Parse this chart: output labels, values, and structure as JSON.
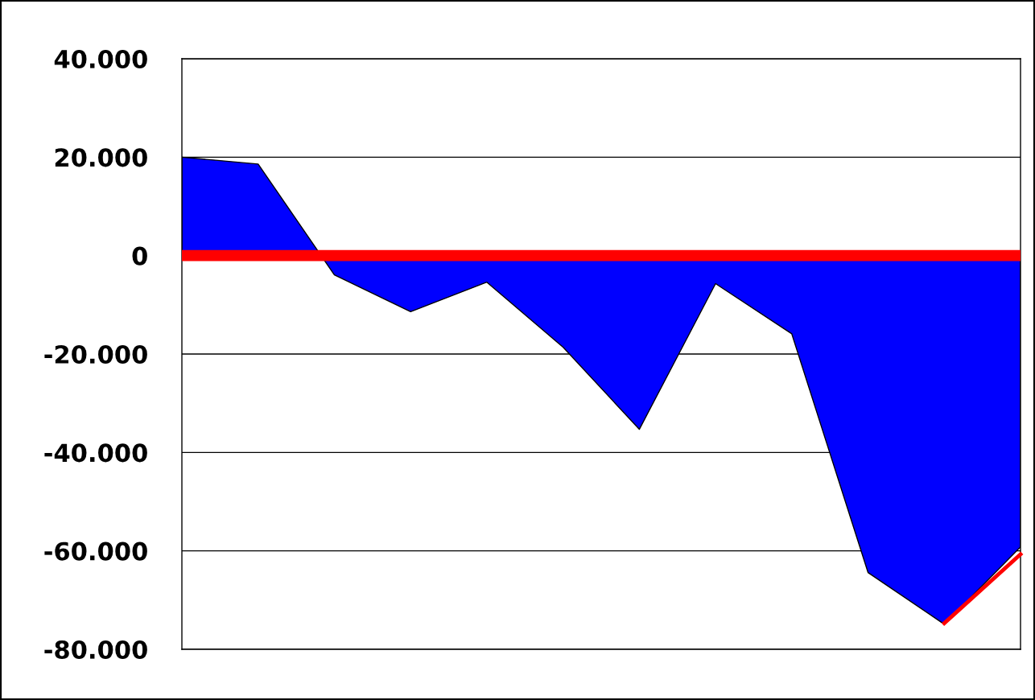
{
  "chart_data": {
    "type": "area",
    "categories": [
      null,
      null,
      null,
      null,
      null,
      null,
      null,
      null,
      null,
      null,
      null,
      null
    ],
    "series": [
      {
        "color": "#0000ff",
        "values": [
          20000,
          18600,
          -3900,
          -11400,
          -5400,
          -18600,
          -35300,
          -5700,
          -15900,
          -64400,
          -74900,
          -59200
        ]
      },
      {
        "type": "line",
        "color": "#ff0000",
        "values": [
          null,
          null,
          null,
          null,
          null,
          null,
          null,
          null,
          null,
          null,
          -74700,
          -60700
        ]
      }
    ],
    "ylim": [
      -80000,
      40000
    ],
    "yticks": [
      {
        "value": -80000,
        "label": "-80.000"
      },
      {
        "value": -60000,
        "label": "-60.000"
      },
      {
        "value": -40000,
        "label": "-40.000"
      },
      {
        "value": -20000,
        "label": "-20.000"
      },
      {
        "value": 0,
        "label": "0"
      },
      {
        "value": 20000,
        "label": "20.000"
      },
      {
        "value": 40000,
        "label": "40.000"
      }
    ],
    "grid": "y",
    "tick_labels": "y",
    "ref_lines": [
      {
        "axis": "y",
        "value": 0,
        "color": "#ff0000"
      }
    ]
  }
}
